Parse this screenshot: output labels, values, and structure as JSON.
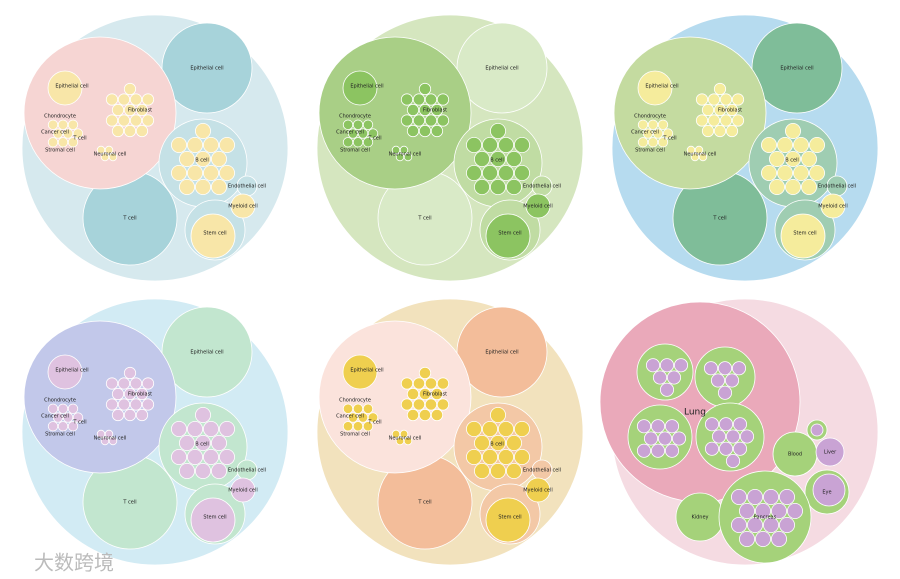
{
  "panels": [
    {
      "labels": [
        "Epithelial cell",
        "Epithelial cell",
        "Fibroblast",
        "Chondrocyte",
        "Cancer cell",
        "T cell",
        "Stromal cell",
        "Neuronal cell",
        "B cell",
        "Endothelial cell",
        "Myeloid cell",
        "T cell",
        "Stem cell"
      ]
    },
    {
      "labels": [
        "Epithelial cell",
        "Epithelial cell",
        "Fibroblast",
        "Chondrocyte",
        "Cancer cell",
        "T cell",
        "Stromal cell",
        "Neuronal cell",
        "B cell",
        "Endothelial cell",
        "Myeloid cell",
        "T cell",
        "Stem cell"
      ]
    },
    {
      "labels": [
        "Epithelial cell",
        "Epithelial cell",
        "Fibroblast",
        "Chondrocyte",
        "Cancer cell",
        "T cell",
        "Stromal cell",
        "Neuronal cell",
        "B cell",
        "Endothelial cell",
        "Myeloid cell",
        "T cell",
        "Stem cell"
      ]
    },
    {
      "labels": [
        "Epithelial cell",
        "Epithelial cell",
        "Fibroblast",
        "Chondrocyte",
        "Cancer cell",
        "T cell",
        "Stromal cell",
        "Neuronal cell",
        "B cell",
        "Endothelial cell",
        "Myeloid cell",
        "T cell",
        "Stem cell"
      ]
    },
    {
      "labels": [
        "Epithelial cell",
        "Epithelial cell",
        "Fibroblast",
        "Chondrocyte",
        "Cancer cell",
        "T cell",
        "Stromal cell",
        "Neuronal cell",
        "B cell",
        "Endothelial cell",
        "Myeloid cell",
        "T cell",
        "Stem cell"
      ]
    },
    {
      "labels": [
        "Lung",
        "Blood",
        "Liver",
        "Eye",
        "Kidney",
        "Pancreas"
      ]
    }
  ],
  "watermark": "大数跨境"
}
